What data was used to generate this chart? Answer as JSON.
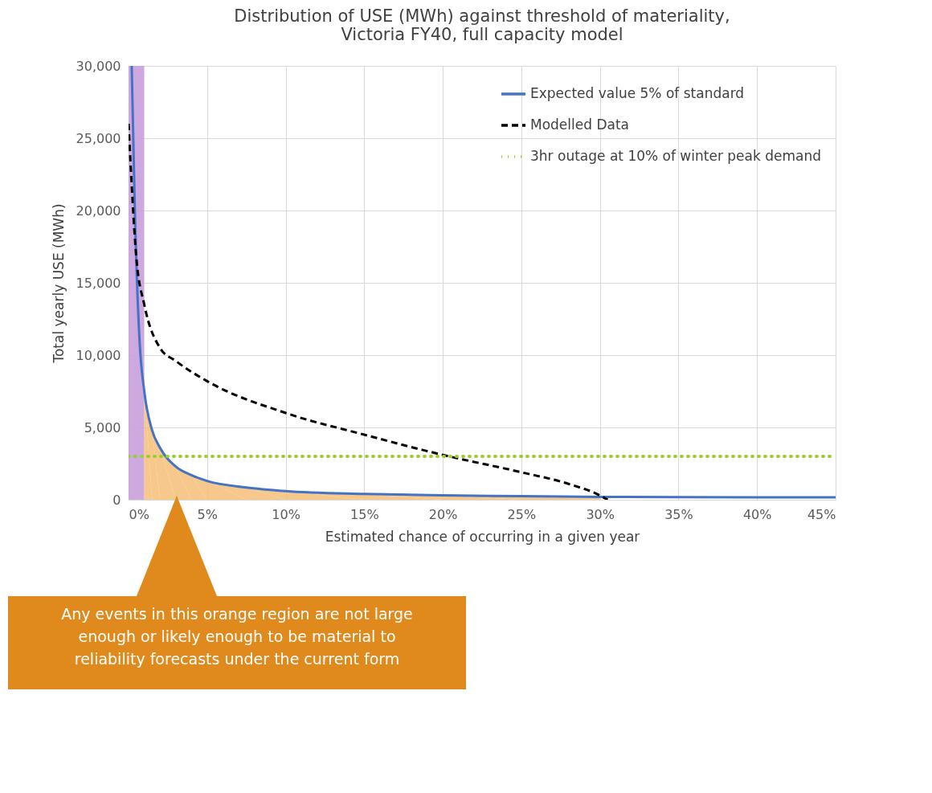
{
  "chart_data": {
    "type": "line",
    "title": [
      "Distribution of USE (MWh) against threshold of materiality,",
      "Victoria FY40, full capacity model"
    ],
    "xlabel": "Estimated chance of occurring in a given year",
    "ylabel": "Total yearly USE (MWh)",
    "xlim": [
      0,
      45
    ],
    "ylim": [
      0,
      30000
    ],
    "xticks": [
      {
        "value": 0,
        "label": "0%"
      },
      {
        "value": 5,
        "label": "5%"
      },
      {
        "value": 10,
        "label": "10%"
      },
      {
        "value": 15,
        "label": "15%"
      },
      {
        "value": 20,
        "label": "20%"
      },
      {
        "value": 25,
        "label": "25%"
      },
      {
        "value": 30,
        "label": "30%"
      },
      {
        "value": 35,
        "label": "35%"
      },
      {
        "value": 40,
        "label": "40%"
      },
      {
        "value": 45,
        "label": "45%"
      }
    ],
    "yticks": [
      0,
      {
        "value": 5000,
        "label": "5,000"
      },
      {
        "value": 10000,
        "label": "10,000"
      },
      {
        "value": 15000,
        "label": "15,000"
      },
      {
        "value": 20000,
        "label": "20,000"
      },
      {
        "value": 25000,
        "label": "25,000"
      },
      {
        "value": 30000,
        "label": "30,000"
      }
    ],
    "grid": true,
    "legend": "top right",
    "series": [
      {
        "type": "area",
        "color": "#f5be78",
        "x": [
          1,
          1.5,
          2,
          3,
          4,
          5,
          7.5,
          10,
          15,
          20,
          25,
          30
        ],
        "values": [
          7500,
          4800,
          3600,
          2300,
          1700,
          1300,
          850,
          600,
          400,
          300,
          250,
          200
        ]
      },
      {
        "name": "Expected value 5% of standard",
        "color": "#4472c4",
        "line_style": "solid",
        "x": [
          0.2,
          0.4,
          0.7,
          1,
          1.5,
          2,
          3,
          4,
          5,
          7.5,
          10,
          15,
          20,
          25,
          30,
          35,
          40,
          45
        ],
        "values": [
          30000,
          20000,
          11000,
          7500,
          4800,
          3600,
          2300,
          1700,
          1300,
          850,
          600,
          400,
          300,
          250,
          200,
          180,
          170,
          160
        ]
      },
      {
        "name": "Modelled Data",
        "color": "#000000",
        "line_style": "dashed",
        "x": [
          0,
          0.5,
          1,
          2,
          3,
          5,
          10,
          15,
          20,
          25,
          28,
          30,
          30.5
        ],
        "values": [
          26000,
          16700,
          13500,
          10500,
          9600,
          8200,
          6000,
          4500,
          3100,
          1900,
          1100,
          300,
          0
        ]
      },
      {
        "name": "3hr outage at 10% of winter peak demand",
        "color": "#9acd32",
        "line_style": "dotted",
        "x": [
          0,
          45
        ],
        "values": [
          3000,
          3000
        ]
      }
    ],
    "bands": [
      {
        "axis": "x",
        "from": 0,
        "to": 1,
        "color": "#c9a0dc"
      }
    ],
    "annotations": [
      "Any events in this orange region are not large enough or likely enough to be material to reliability forecasts under the current form"
    ]
  }
}
